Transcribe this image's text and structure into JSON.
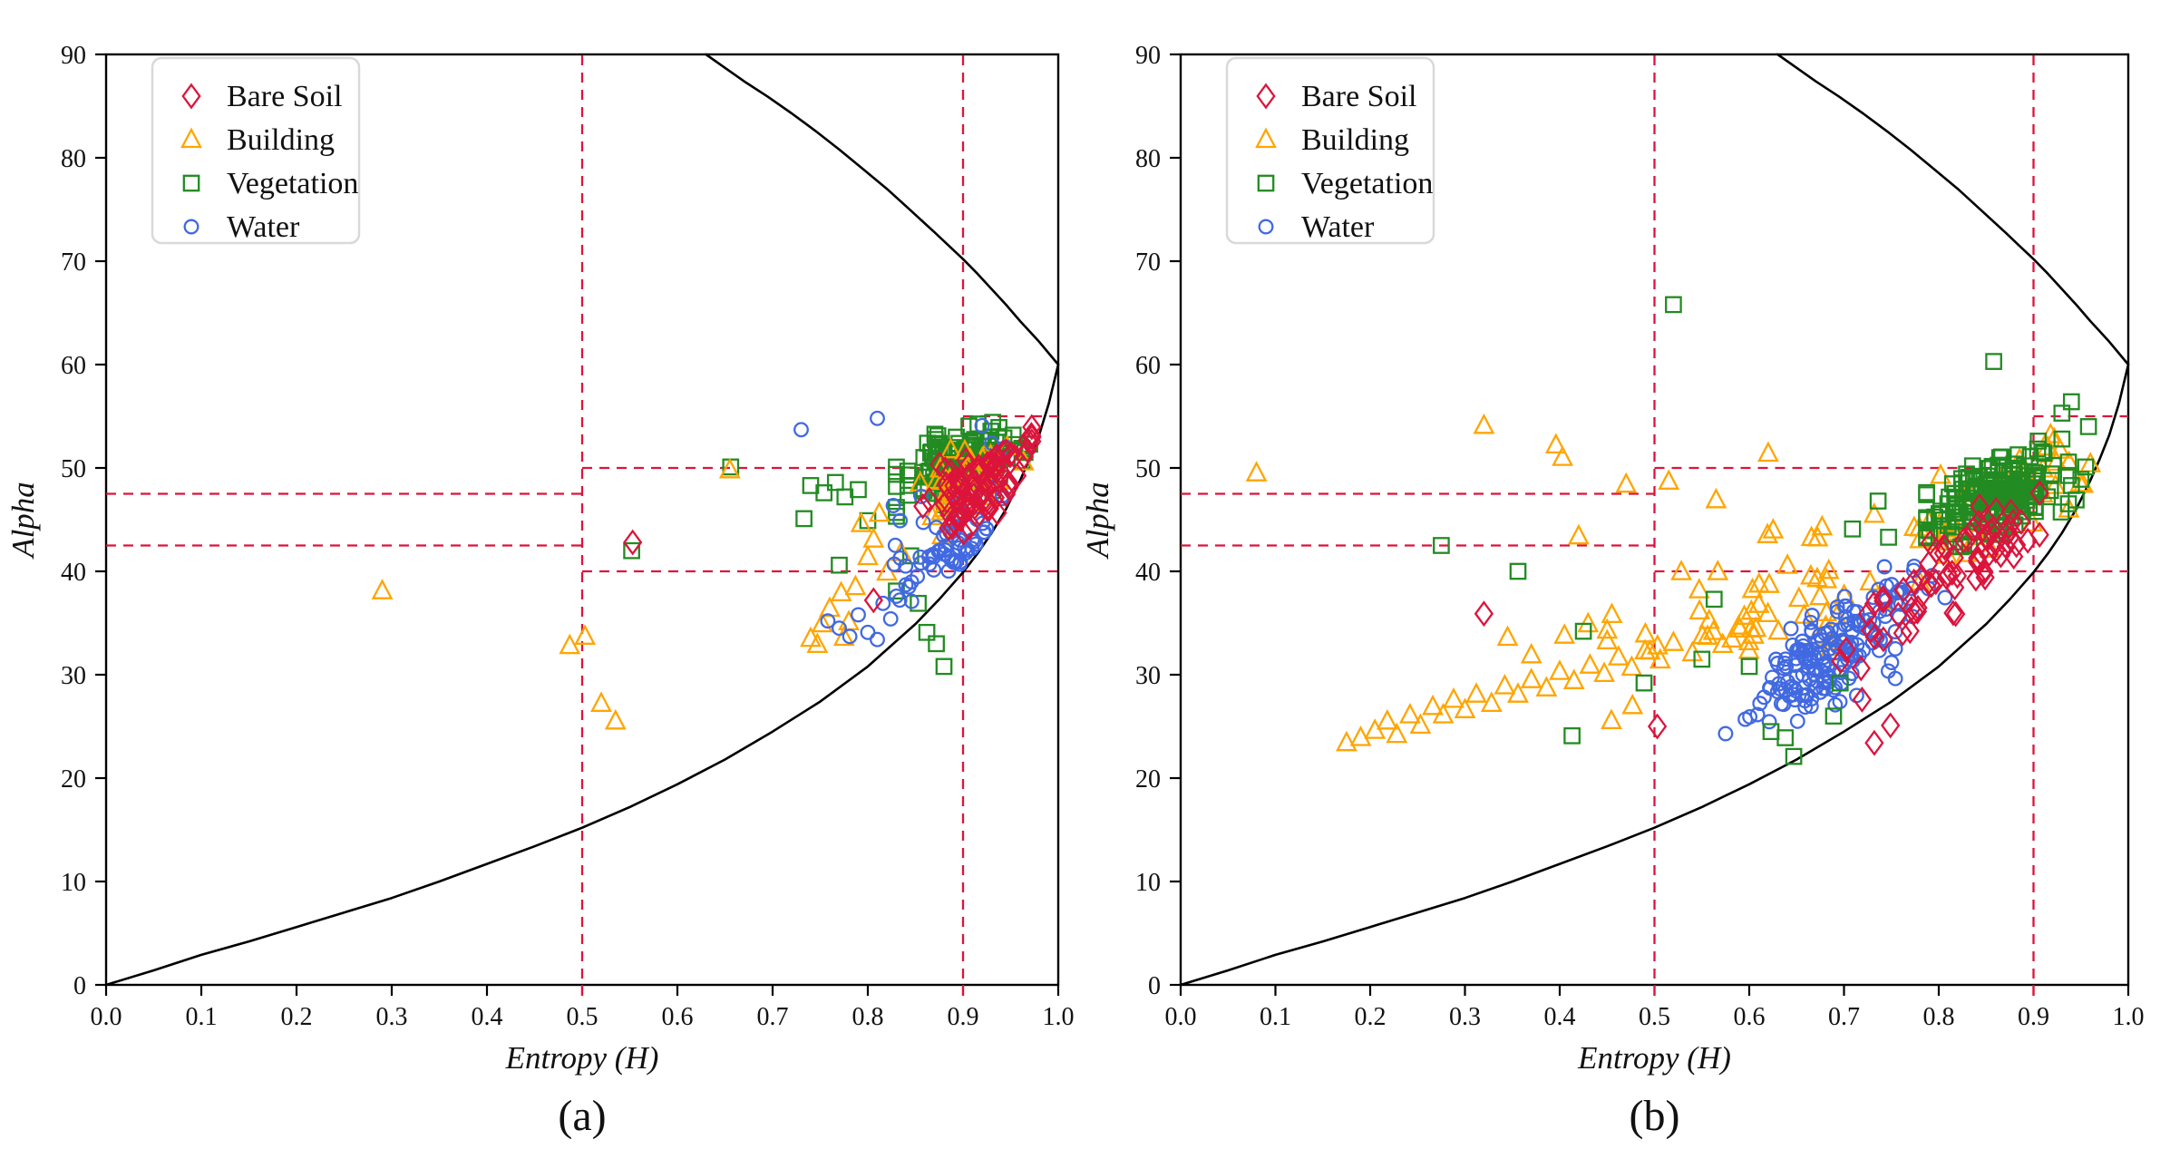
{
  "colors": {
    "bare_soil": "#DC143C",
    "building": "#FFA500",
    "vegetation": "#228B22",
    "water": "#4169E1",
    "zone_line": "#DC143C",
    "boundary_curve": "#000000",
    "axis": "#000000",
    "legend_border": "#d9d9d9"
  },
  "legend": {
    "items": [
      {
        "label": "Bare Soil",
        "marker": "diamond",
        "color": "#DC143C"
      },
      {
        "label": "Building",
        "marker": "triangle",
        "color": "#FFA500"
      },
      {
        "label": "Vegetation",
        "marker": "square",
        "color": "#228B22"
      },
      {
        "label": "Water",
        "marker": "circle",
        "color": "#4169E1"
      }
    ]
  },
  "axes": {
    "xlabel": "Entropy (H)",
    "ylabel": "Alpha",
    "xlim": [
      0,
      1
    ],
    "ylim": [
      0,
      90
    ],
    "x_ticks": [
      "0.0",
      "0.1",
      "0.2",
      "0.3",
      "0.4",
      "0.5",
      "0.6",
      "0.7",
      "0.8",
      "0.9",
      "1.0"
    ],
    "y_ticks": [
      "0",
      "10",
      "20",
      "30",
      "40",
      "50",
      "60",
      "70",
      "80",
      "90"
    ],
    "red_x_ticks": [
      0.5,
      0.9
    ],
    "grid": false,
    "legend_position": "upper-left"
  },
  "zone_lines": [
    {
      "x": [
        0.5,
        0.5
      ],
      "y": [
        0,
        90
      ]
    },
    {
      "x": [
        0.9,
        0.9
      ],
      "y": [
        0,
        90
      ]
    },
    {
      "x": [
        0.0,
        0.5
      ],
      "y": [
        42.5,
        42.5
      ]
    },
    {
      "x": [
        0.0,
        0.5
      ],
      "y": [
        47.5,
        47.5
      ]
    },
    {
      "x": [
        0.5,
        0.9
      ],
      "y": [
        50,
        50
      ]
    },
    {
      "x": [
        0.5,
        1.0
      ],
      "y": [
        40,
        40
      ]
    },
    {
      "x": [
        0.9,
        1.0
      ],
      "y": [
        55,
        55
      ]
    }
  ],
  "boundary_curves": {
    "lower": [
      [
        0,
        0
      ],
      [
        0.05,
        1.4
      ],
      [
        0.1,
        2.9
      ],
      [
        0.15,
        4.2
      ],
      [
        0.2,
        5.6
      ],
      [
        0.25,
        7.0
      ],
      [
        0.3,
        8.4
      ],
      [
        0.35,
        10.0
      ],
      [
        0.4,
        11.7
      ],
      [
        0.45,
        13.4
      ],
      [
        0.5,
        15.2
      ],
      [
        0.55,
        17.2
      ],
      [
        0.6,
        19.4
      ],
      [
        0.65,
        21.8
      ],
      [
        0.7,
        24.5
      ],
      [
        0.75,
        27.4
      ],
      [
        0.8,
        30.8
      ],
      [
        0.85,
        34.9
      ],
      [
        0.875,
        37.3
      ],
      [
        0.9,
        39.9
      ],
      [
        0.915,
        41.7
      ],
      [
        0.93,
        43.7
      ],
      [
        0.945,
        46.0
      ],
      [
        0.96,
        48.8
      ],
      [
        0.97,
        50.9
      ],
      [
        0.98,
        53.2
      ],
      [
        0.99,
        56.2
      ],
      [
        1.0,
        60
      ]
    ],
    "upper": [
      [
        0.63,
        90
      ],
      [
        0.65,
        88.7
      ],
      [
        0.67,
        87.4
      ],
      [
        0.695,
        85.9
      ],
      [
        0.72,
        84.3
      ],
      [
        0.745,
        82.6
      ],
      [
        0.77,
        80.8
      ],
      [
        0.795,
        78.9
      ],
      [
        0.82,
        77.0
      ],
      [
        0.845,
        74.9
      ],
      [
        0.87,
        72.8
      ],
      [
        0.885,
        71.5
      ],
      [
        0.9,
        70.2
      ],
      [
        0.915,
        68.8
      ],
      [
        0.93,
        67.3
      ],
      [
        0.945,
        65.8
      ],
      [
        0.96,
        64.2
      ],
      [
        0.97,
        63.2
      ],
      [
        0.98,
        62.2
      ],
      [
        0.99,
        61.1
      ],
      [
        1.0,
        60
      ]
    ]
  },
  "chart_data": [
    {
      "type": "scatter",
      "panel": "a",
      "caption": "(a)",
      "xlabel": "Entropy (H)",
      "ylabel": "Alpha",
      "series": [
        {
          "name": "Vegetation",
          "class": "vegetation",
          "marker": "square",
          "color": "#228B22",
          "points": [
            [
              0.656,
              50.1
            ],
            [
              0.552,
              42.0
            ],
            [
              0.74,
              48.3
            ],
            [
              0.754,
              47.6
            ],
            [
              0.766,
              48.6
            ],
            [
              0.776,
              47.2
            ],
            [
              0.79,
              47.9
            ],
            [
              0.8,
              44.9
            ],
            [
              0.733,
              45.1
            ],
            [
              0.77,
              40.6
            ],
            [
              0.83,
              38.1
            ],
            [
              0.853,
              36.9
            ],
            [
              0.862,
              34.1
            ],
            [
              0.845,
              41.5
            ],
            [
              0.872,
              33.0
            ],
            [
              0.88,
              30.8
            ],
            [
              0.965,
              51.5
            ],
            [
              0.97,
              52.3
            ]
          ],
          "clusters": [
            {
              "seed": 31,
              "n": 160,
              "center": [
                0.896,
                50.3
              ],
              "spread": [
                0.03,
                1.6
              ],
              "slope": 22
            }
          ]
        },
        {
          "name": "Building",
          "class": "building",
          "marker": "triangle",
          "color": "#FFA500",
          "points": [
            [
              0.29,
              38.1
            ],
            [
              0.487,
              32.8
            ],
            [
              0.503,
              33.7
            ],
            [
              0.52,
              27.2
            ],
            [
              0.535,
              25.5
            ],
            [
              0.655,
              49.8
            ],
            [
              0.74,
              33.5
            ],
            [
              0.752,
              34.9
            ],
            [
              0.747,
              32.9
            ],
            [
              0.76,
              36.4
            ],
            [
              0.772,
              37.9
            ],
            [
              0.78,
              35.1
            ],
            [
              0.787,
              38.5
            ],
            [
              0.775,
              33.6
            ],
            [
              0.8,
              41.4
            ],
            [
              0.806,
              43.1
            ],
            [
              0.793,
              44.6
            ],
            [
              0.812,
              45.6
            ],
            [
              0.82,
              39.9
            ],
            [
              0.835,
              41.8
            ]
          ],
          "clusters": [
            {
              "seed": 21,
              "n": 42,
              "center": [
                0.902,
                48.3
              ],
              "spread": [
                0.028,
                2.0
              ],
              "slope": 20
            }
          ]
        },
        {
          "name": "Water",
          "class": "water",
          "marker": "circle",
          "color": "#4169E1",
          "points": [
            [
              0.73,
              53.7
            ],
            [
              0.81,
              54.8
            ],
            [
              0.758,
              35.2
            ],
            [
              0.77,
              34.5
            ],
            [
              0.781,
              33.7
            ],
            [
              0.79,
              35.8
            ],
            [
              0.8,
              34.1
            ],
            [
              0.81,
              33.4
            ],
            [
              0.816,
              36.9
            ],
            [
              0.824,
              35.4
            ],
            [
              0.83,
              37.6
            ],
            [
              0.84,
              38.7
            ],
            [
              0.846,
              37.1
            ],
            [
              0.852,
              39.5
            ],
            [
              0.92,
              54.1
            ],
            [
              0.93,
              52.4
            ],
            [
              0.945,
              52.0
            ]
          ],
          "clusters": [
            {
              "seed": 41,
              "n": 62,
              "center": [
                0.884,
                42.8
              ],
              "spread": [
                0.026,
                2.4
              ],
              "slope": 30
            }
          ]
        },
        {
          "name": "Bare Soil",
          "class": "bare_soil",
          "marker": "diamond",
          "color": "#DC143C",
          "points": [
            [
              0.553,
              42.8
            ],
            [
              0.806,
              37.2
            ]
          ],
          "clusters": [
            {
              "seed": 11,
              "n": 92,
              "center": [
                0.915,
                48.0
              ],
              "spread": [
                0.026,
                1.7
              ],
              "slope": 35
            }
          ]
        }
      ]
    },
    {
      "type": "scatter",
      "panel": "b",
      "caption": "(b)",
      "xlabel": "Entropy (H)",
      "ylabel": "Alpha",
      "series": [
        {
          "name": "Building",
          "class": "building",
          "marker": "triangle",
          "color": "#FFA500",
          "points": [
            [
              0.175,
              23.4
            ],
            [
              0.19,
              23.9
            ],
            [
              0.205,
              24.6
            ],
            [
              0.218,
              25.5
            ],
            [
              0.228,
              24.2
            ],
            [
              0.242,
              26.1
            ],
            [
              0.253,
              25.1
            ],
            [
              0.266,
              26.9
            ],
            [
              0.277,
              26.1
            ],
            [
              0.288,
              27.6
            ],
            [
              0.3,
              26.6
            ],
            [
              0.312,
              28.1
            ],
            [
              0.328,
              27.2
            ],
            [
              0.342,
              28.9
            ],
            [
              0.356,
              28.1
            ],
            [
              0.37,
              29.5
            ],
            [
              0.386,
              28.7
            ],
            [
              0.4,
              30.3
            ],
            [
              0.415,
              29.4
            ],
            [
              0.432,
              30.9
            ],
            [
              0.447,
              30.1
            ],
            [
              0.462,
              31.7
            ],
            [
              0.476,
              30.7
            ],
            [
              0.49,
              32.3
            ],
            [
              0.506,
              31.4
            ],
            [
              0.52,
              33.1
            ],
            [
              0.54,
              32.1
            ],
            [
              0.556,
              33.7
            ],
            [
              0.572,
              32.9
            ],
            [
              0.59,
              34.4
            ],
            [
              0.08,
              49.5
            ],
            [
              0.32,
              54.1
            ],
            [
              0.396,
              52.2
            ],
            [
              0.403,
              51.0
            ],
            [
              0.42,
              43.4
            ],
            [
              0.47,
              48.4
            ],
            [
              0.515,
              48.7
            ],
            [
              0.62,
              51.4
            ],
            [
              0.565,
              46.9
            ],
            [
              0.345,
              33.6
            ],
            [
              0.37,
              31.9
            ],
            [
              0.405,
              33.8
            ],
            [
              0.43,
              34.9
            ],
            [
              0.455,
              35.8
            ],
            [
              0.915,
              52.0
            ],
            [
              0.922,
              52.8
            ],
            [
              0.928,
              51.7
            ],
            [
              0.918,
              53.2
            ]
          ],
          "clusters": [
            {
              "seed": 22,
              "n": 55,
              "center": [
                0.615,
                37.0
              ],
              "spread": [
                0.075,
                3.2
              ],
              "slope": 30
            },
            {
              "seed": 23,
              "n": 45,
              "center": [
                0.85,
                45.8
              ],
              "spread": [
                0.05,
                2.4
              ],
              "slope": 35
            }
          ]
        },
        {
          "name": "Water",
          "class": "water",
          "marker": "circle",
          "color": "#4169E1",
          "points": [
            [
              0.575,
              24.3
            ]
          ],
          "clusters": [
            {
              "seed": 42,
              "n": 150,
              "center": [
                0.675,
                31.3
              ],
              "spread": [
                0.036,
                2.2
              ],
              "slope": 40
            },
            {
              "seed": 43,
              "n": 30,
              "center": [
                0.745,
                36.8
              ],
              "spread": [
                0.028,
                1.7
              ],
              "slope": 45
            }
          ]
        },
        {
          "name": "Vegetation",
          "class": "vegetation",
          "marker": "square",
          "color": "#228B22",
          "points": [
            [
              0.52,
              65.8
            ],
            [
              0.858,
              60.3
            ],
            [
              0.94,
              56.4
            ],
            [
              0.93,
              55.3
            ],
            [
              0.958,
              54.0
            ],
            [
              0.93,
              52.8
            ],
            [
              0.905,
              52.6
            ],
            [
              0.275,
              42.5
            ],
            [
              0.356,
              40.0
            ],
            [
              0.563,
              37.3
            ],
            [
              0.489,
              29.2
            ],
            [
              0.413,
              24.1
            ],
            [
              0.638,
              23.9
            ],
            [
              0.647,
              22.1
            ],
            [
              0.689,
              26.0
            ],
            [
              0.623,
              24.5
            ],
            [
              0.709,
              44.1
            ],
            [
              0.736,
              46.8
            ],
            [
              0.747,
              43.3
            ],
            [
              0.696,
              29.2
            ],
            [
              0.6,
              30.8
            ],
            [
              0.55,
              31.5
            ],
            [
              0.425,
              34.2
            ],
            [
              0.94,
              48.3
            ],
            [
              0.95,
              48.9
            ],
            [
              0.955,
              50.1
            ],
            [
              0.945,
              46.9
            ]
          ],
          "clusters": [
            {
              "seed": 32,
              "n": 210,
              "center": [
                0.862,
                47.2
              ],
              "spread": [
                0.034,
                1.7
              ],
              "slope": 28
            }
          ]
        },
        {
          "name": "Bare Soil",
          "class": "bare_soil",
          "marker": "diamond",
          "color": "#DC143C",
          "points": [
            [
              0.32,
              35.9
            ],
            [
              0.503,
              25.0
            ],
            [
              0.719,
              27.6
            ],
            [
              0.749,
              25.1
            ],
            [
              0.732,
              23.4
            ]
          ],
          "clusters": [
            {
              "seed": 12,
              "n": 55,
              "center": [
                0.795,
                38.8
              ],
              "spread": [
                0.045,
                1.9
              ],
              "slope": 55
            },
            {
              "seed": 13,
              "n": 18,
              "center": [
                0.858,
                43.6
              ],
              "spread": [
                0.022,
                1.5
              ],
              "slope": 40
            }
          ]
        }
      ]
    }
  ]
}
